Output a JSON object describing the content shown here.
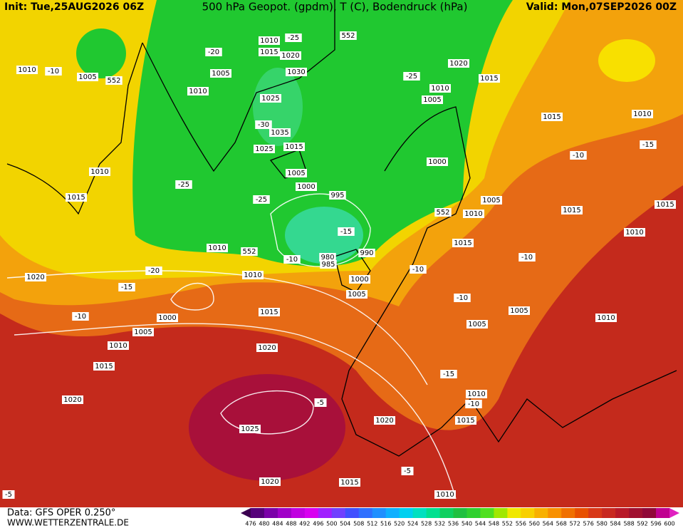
{
  "header": {
    "init": "Init: Tue,25AUG2026 06Z",
    "title": "500 hPa Geopot. (gpdm), T (C), Bodendruck (hPa)",
    "valid": "Valid: Mon,07SEP2026 00Z"
  },
  "footer": {
    "source": "Data: GFS OPER 0.250°",
    "website": "WWW.WETTERZENTRALE.DE"
  },
  "colorbar": {
    "labels": [
      476,
      480,
      484,
      488,
      492,
      496,
      500,
      504,
      508,
      512,
      516,
      520,
      524,
      528,
      532,
      536,
      540,
      544,
      548,
      552,
      556,
      560,
      564,
      568,
      572,
      576,
      580,
      584,
      588,
      592,
      596,
      600
    ],
    "colors": [
      "#3a0050",
      "#55007a",
      "#7a00a8",
      "#a000c8",
      "#c000e0",
      "#d800f0",
      "#a020ff",
      "#7040ff",
      "#4050ff",
      "#3070ff",
      "#2090ff",
      "#10b0ff",
      "#00d0f0",
      "#00e0c0",
      "#00e090",
      "#10d060",
      "#20c040",
      "#30d030",
      "#50e020",
      "#a0e800",
      "#f0e800",
      "#f8d000",
      "#f8b000",
      "#f89000",
      "#f07000",
      "#e85000",
      "#d83818",
      "#c82820",
      "#b81828",
      "#a01030",
      "#900838",
      "#c00090",
      "#e020c0"
    ]
  },
  "map_labels": [
    "1010",
    "-10",
    "1005",
    "552",
    "1010",
    "-25",
    "552",
    "1015",
    "1020",
    "-20",
    "1005",
    "1010",
    "1030",
    "1025",
    "-30",
    "1035",
    "1025",
    "1015",
    "-25",
    "1020",
    "1015",
    "1010",
    "1005",
    "1015",
    "1010",
    "-15",
    "-10",
    "1010",
    "-25",
    "1015",
    "1005",
    "1000",
    "995",
    "-25",
    "1000",
    "1005",
    "1015",
    "1015",
    "1010",
    "552",
    "1010",
    "-15",
    "1010",
    "552",
    "-10",
    "980",
    "985",
    "990",
    "1015",
    "-10",
    "-20",
    "1020",
    "1010",
    "-15",
    "-10",
    "1000",
    "1005",
    "-10",
    "1005",
    "1010",
    "-10",
    "1000",
    "1015",
    "1005",
    "1005",
    "1010",
    "1020",
    "1015",
    "-15",
    "1020",
    "-5",
    "1010",
    "-10",
    "1015",
    "1020",
    "1025",
    "-5",
    "1020",
    "1015",
    "1010",
    "-5"
  ]
}
